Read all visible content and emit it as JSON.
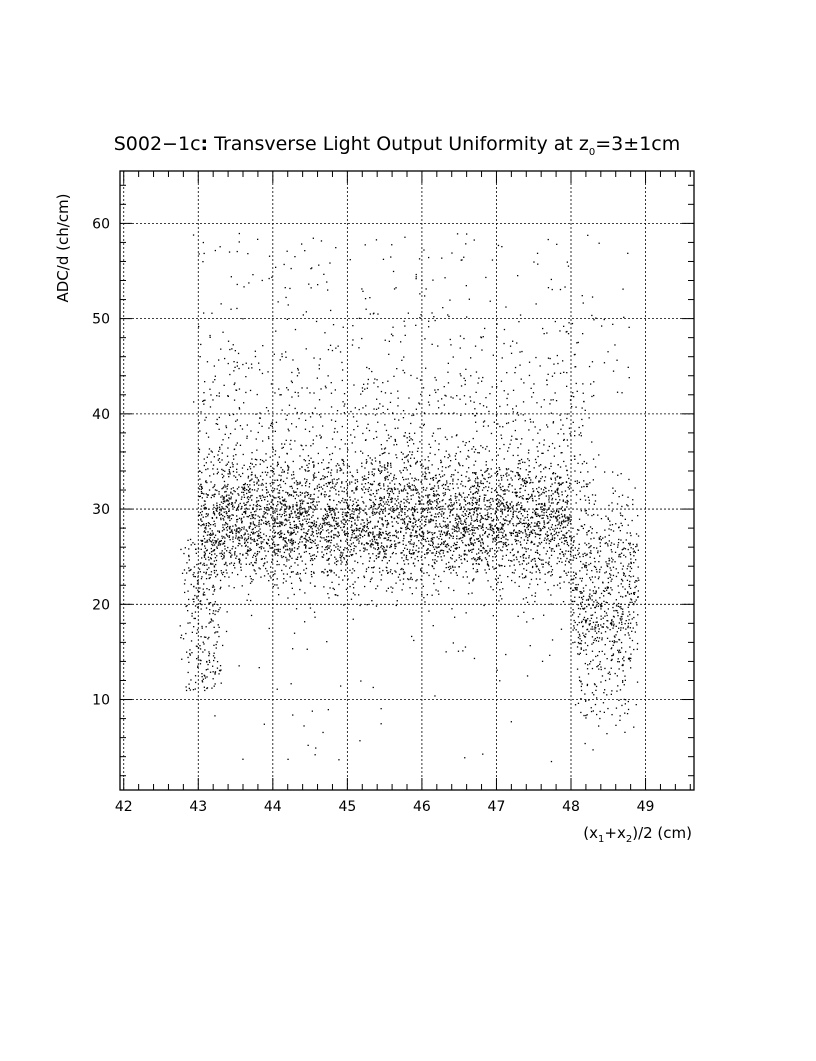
{
  "chart_data": {
    "type": "scatter",
    "title_prefix": "S002−1c",
    "title_colon": ":",
    "title_main": " Transverse Light Output Uniformity at z",
    "title_sub": "0",
    "title_suffix": "=3±1cm",
    "ylabel": "ADC/d (ch/cm)",
    "xlabel_part1": "(x",
    "xlabel_sub1": "1",
    "xlabel_part2": "+x",
    "xlabel_sub2": "2",
    "xlabel_part3": ")/2 (cm)",
    "xlim": [
      41.95,
      49.65
    ],
    "ylim": [
      0.5,
      65.5
    ],
    "x_ticks": [
      42,
      43,
      44,
      45,
      46,
      47,
      48,
      49
    ],
    "x_tick_labels": [
      "42",
      "43",
      "44",
      "45",
      "46",
      "47",
      "48",
      "49"
    ],
    "y_ticks": [
      10,
      20,
      30,
      40,
      50,
      60
    ],
    "y_tick_labels": [
      "10",
      "20",
      "30",
      "40",
      "50",
      "60"
    ],
    "grid": true,
    "legend": "none",
    "point_color": "#000000",
    "density_model": {
      "band_center_y": 28.5,
      "band_spread_y": 3.2,
      "x_range_dense": [
        43.0,
        48.0
      ],
      "edge_drop_region_left": [
        42.8,
        43.3
      ],
      "edge_drop_region_right": [
        48.0,
        48.9
      ]
    }
  }
}
